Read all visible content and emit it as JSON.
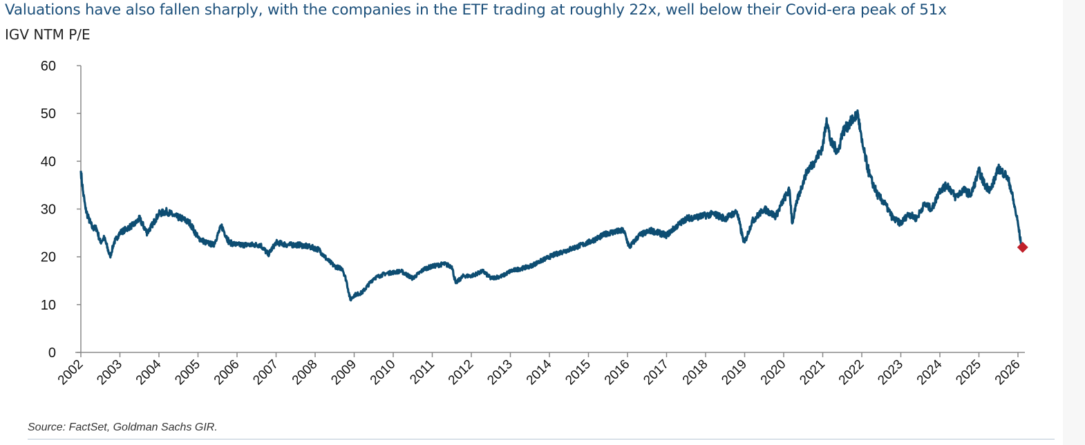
{
  "chart_data": {
    "type": "line",
    "title": "Valuations have also fallen sharply, with the companies in the ETF trading at roughly 22x, well below their Covid-era peak of 51x",
    "subtitle": "IGV NTM P/E",
    "source": "Source: FactSet, Goldman Sachs GIR.",
    "xlabel": "",
    "ylabel": "",
    "ylim": [
      0,
      60
    ],
    "xlim": [
      2002,
      2026.15
    ],
    "y_ticks": [
      "0",
      "10",
      "20",
      "30",
      "40",
      "50",
      "60"
    ],
    "x_ticks": [
      "2002",
      "2003",
      "2004",
      "2005",
      "2006",
      "2007",
      "2008",
      "2009",
      "2010",
      "2011",
      "2012",
      "2013",
      "2014",
      "2015",
      "2016",
      "2017",
      "2018",
      "2019",
      "2020",
      "2021",
      "2022",
      "2023",
      "2024",
      "2025",
      "2026"
    ],
    "grid": false,
    "series": [
      {
        "name": "IGV NTM P/E",
        "color": "#0d4d72",
        "x": [
          2002.0,
          2002.05,
          2002.12,
          2002.2,
          2002.3,
          2002.4,
          2002.5,
          2002.6,
          2002.75,
          2002.85,
          2003.0,
          2003.2,
          2003.4,
          2003.5,
          2003.7,
          2003.85,
          2004.0,
          2004.2,
          2004.4,
          2004.6,
          2004.8,
          2005.0,
          2005.2,
          2005.4,
          2005.6,
          2005.8,
          2006.0,
          2006.3,
          2006.6,
          2006.8,
          2007.0,
          2007.3,
          2007.6,
          2007.9,
          2008.1,
          2008.3,
          2008.5,
          2008.7,
          2008.8,
          2008.9,
          2009.0,
          2009.2,
          2009.5,
          2009.8,
          2010.2,
          2010.5,
          2010.8,
          2011.0,
          2011.3,
          2011.5,
          2011.6,
          2011.8,
          2012.0,
          2012.3,
          2012.5,
          2012.8,
          2013.0,
          2013.5,
          2014.0,
          2014.3,
          2014.5,
          2015.0,
          2015.5,
          2015.9,
          2016.05,
          2016.3,
          2016.6,
          2017.0,
          2017.2,
          2017.5,
          2017.9,
          2018.2,
          2018.5,
          2018.8,
          2018.95,
          2019.0,
          2019.2,
          2019.5,
          2019.8,
          2020.0,
          2020.15,
          2020.22,
          2020.35,
          2020.6,
          2020.8,
          2021.0,
          2021.1,
          2021.2,
          2021.4,
          2021.5,
          2021.7,
          2021.9,
          2022.0,
          2022.2,
          2022.4,
          2022.6,
          2022.8,
          2023.0,
          2023.2,
          2023.4,
          2023.6,
          2023.8,
          2024.0,
          2024.2,
          2024.4,
          2024.6,
          2024.8,
          2025.0,
          2025.15,
          2025.3,
          2025.5,
          2025.7,
          2025.8,
          2025.9,
          2026.0,
          2026.07,
          2026.12
        ],
        "values": [
          38,
          34,
          30,
          28,
          26,
          26,
          23,
          24,
          20,
          23,
          25,
          26,
          27,
          28,
          25,
          27,
          29,
          29.5,
          28.5,
          28,
          27,
          24,
          23,
          22.5,
          26.5,
          23,
          22.5,
          22.5,
          22.5,
          20.5,
          23,
          22.5,
          22.5,
          22,
          21.5,
          19.5,
          18,
          17.5,
          15,
          11,
          12,
          12.5,
          15.5,
          16.5,
          17,
          15.5,
          17.5,
          18,
          18.5,
          18,
          14.5,
          16,
          16,
          17,
          15.5,
          16,
          17,
          18,
          20,
          21,
          21.5,
          23,
          25,
          25.5,
          22,
          24.5,
          25.5,
          24.5,
          26,
          28,
          28.5,
          29,
          28,
          29.5,
          24,
          23,
          27.5,
          30,
          28.5,
          32,
          34,
          27,
          32,
          38,
          40,
          43,
          49,
          44,
          42,
          46,
          48,
          50,
          44,
          37,
          33,
          31,
          28,
          27,
          29,
          28,
          31,
          30,
          34,
          35,
          32.5,
          34,
          33,
          38,
          35,
          34,
          38.5,
          37,
          35,
          31,
          27,
          23,
          21.5
        ]
      }
    ],
    "annotations": [
      {
        "type": "marker",
        "shape": "diamond",
        "x": 2026.12,
        "y": 22,
        "color": "#c0202a"
      }
    ]
  }
}
